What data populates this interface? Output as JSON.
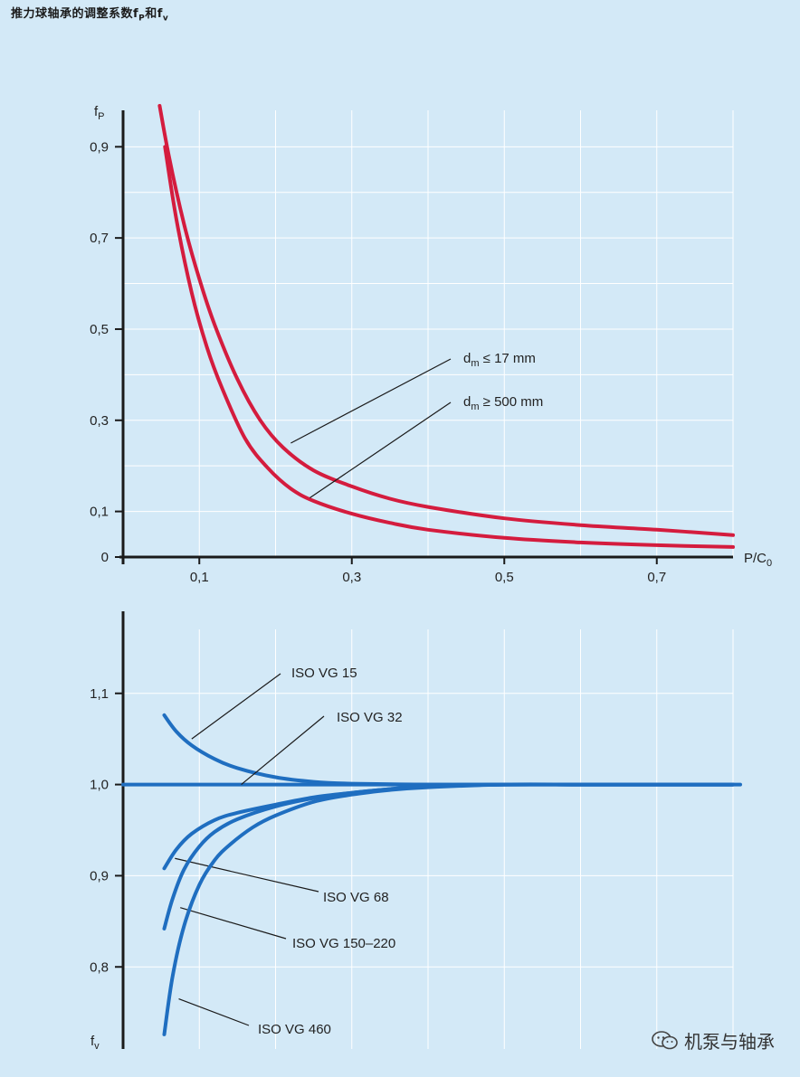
{
  "title": {
    "text": "推力球轴承的调整系数f",
    "sub1": "P",
    "mid": "和f",
    "sub2": "v"
  },
  "watermark": "机泵与轴承",
  "colors": {
    "background": "#d3e9f7",
    "grid": "#ffffff",
    "red": "#d41c3e",
    "blue": "#1f6ec0",
    "axis": "#1a1a1a"
  },
  "chart_data": [
    {
      "type": "line",
      "name": "fP chart",
      "ylabel_main": "f",
      "ylabel_sub": "P",
      "xlabel_main": "P/C",
      "xlabel_sub": "0",
      "xlim": [
        0,
        0.8
      ],
      "ylim": [
        0,
        0.98
      ],
      "xticks": [
        0.1,
        0.3,
        0.5,
        0.7
      ],
      "xtick_labels": [
        "0,1",
        "0,3",
        "0,5",
        "0,7"
      ],
      "yticks": [
        0,
        0.1,
        0.3,
        0.5,
        0.7,
        0.9
      ],
      "ytick_labels": [
        "0",
        "0,1",
        "0,3",
        "0,5",
        "0,7",
        "0,9"
      ],
      "grid_x": [
        0.1,
        0.2,
        0.3,
        0.4,
        0.5,
        0.6,
        0.7,
        0.8
      ],
      "grid_y": [
        0.1,
        0.2,
        0.3,
        0.4,
        0.5,
        0.6,
        0.7,
        0.8,
        0.9
      ],
      "series": [
        {
          "name": "dm ≤ 17 mm",
          "label_main": "d",
          "label_sub": "m",
          "label_rest": " ≤ 17 mm",
          "color": "#d41c3e",
          "x": [
            0.048,
            0.06,
            0.08,
            0.1,
            0.12,
            0.15,
            0.18,
            0.21,
            0.25,
            0.3,
            0.35,
            0.4,
            0.5,
            0.6,
            0.7,
            0.8
          ],
          "y": [
            0.99,
            0.88,
            0.73,
            0.61,
            0.51,
            0.39,
            0.3,
            0.24,
            0.19,
            0.155,
            0.128,
            0.11,
            0.085,
            0.07,
            0.06,
            0.048
          ],
          "leader_to": [
            0.22,
            0.25
          ]
        },
        {
          "name": "dm ≥ 500 mm",
          "label_main": "d",
          "label_sub": "m",
          "label_rest": " ≥ 500 mm",
          "color": "#d41c3e",
          "x": [
            0.055,
            0.07,
            0.09,
            0.11,
            0.13,
            0.16,
            0.19,
            0.22,
            0.25,
            0.3,
            0.35,
            0.4,
            0.5,
            0.6,
            0.7,
            0.8
          ],
          "y": [
            0.9,
            0.74,
            0.58,
            0.46,
            0.37,
            0.26,
            0.195,
            0.15,
            0.123,
            0.095,
            0.075,
            0.06,
            0.042,
            0.032,
            0.026,
            0.022
          ],
          "leader_to": [
            0.245,
            0.13
          ]
        }
      ]
    },
    {
      "type": "line",
      "name": "fv chart",
      "ylabel_main": "f",
      "ylabel_sub": "v",
      "xlim": [
        0,
        0.8
      ],
      "ylim": [
        0.71,
        1.19
      ],
      "yticks": [
        0.8,
        0.9,
        1.0,
        1.1
      ],
      "ytick_labels": [
        "0,8",
        "0,9",
        "1,0",
        "1,1"
      ],
      "grid_x": [
        0.1,
        0.2,
        0.3,
        0.4,
        0.5,
        0.6,
        0.7,
        0.8
      ],
      "grid_y": [
        0.8,
        0.9,
        1.0,
        1.1
      ],
      "series": [
        {
          "name": "ISO VG 15",
          "color": "#1f6ec0",
          "x": [
            0.054,
            0.07,
            0.09,
            0.12,
            0.15,
            0.2,
            0.25,
            0.3,
            0.4,
            0.5,
            0.6,
            0.7,
            0.8
          ],
          "y": [
            1.076,
            1.058,
            1.043,
            1.028,
            1.018,
            1.008,
            1.003,
            1.001,
            1.0,
            1.0,
            1.0,
            1.0,
            1.0
          ],
          "leader_to": [
            0.09,
            1.05
          ]
        },
        {
          "name": "ISO VG 32",
          "color": "#1f6ec0",
          "x": [
            0.0,
            0.1,
            0.2,
            0.3,
            0.4,
            0.5,
            0.6,
            0.7,
            0.8
          ],
          "y": [
            1.0,
            1.0,
            1.0,
            1.0,
            1.0,
            1.0,
            1.0,
            1.0,
            1.0
          ],
          "leader_to": [
            0.155,
            1.0
          ]
        },
        {
          "name": "ISO VG 68",
          "color": "#1f6ec0",
          "x": [
            0.054,
            0.07,
            0.09,
            0.12,
            0.15,
            0.2,
            0.25,
            0.3,
            0.35,
            0.4,
            0.5,
            0.6,
            0.7,
            0.8
          ],
          "y": [
            0.908,
            0.929,
            0.946,
            0.961,
            0.969,
            0.978,
            0.986,
            0.991,
            0.995,
            0.998,
            1.0,
            1.0,
            1.0,
            1.0
          ],
          "leader_to": [
            0.068,
            0.919
          ]
        },
        {
          "name": "ISO VG 150–220",
          "color": "#1f6ec0",
          "x": [
            0.054,
            0.065,
            0.08,
            0.1,
            0.12,
            0.15,
            0.2,
            0.25,
            0.3,
            0.35,
            0.4,
            0.5,
            0.6,
            0.7,
            0.8
          ],
          "y": [
            0.842,
            0.875,
            0.907,
            0.932,
            0.948,
            0.962,
            0.976,
            0.985,
            0.991,
            0.995,
            0.998,
            1.0,
            1.0,
            1.0,
            1.0
          ],
          "leader_to": [
            0.075,
            0.865
          ]
        },
        {
          "name": "ISO VG 460",
          "color": "#1f6ec0",
          "x": [
            0.054,
            0.065,
            0.08,
            0.1,
            0.12,
            0.14,
            0.17,
            0.2,
            0.25,
            0.3,
            0.35,
            0.4,
            0.5,
            0.6,
            0.7,
            0.8
          ],
          "y": [
            0.726,
            0.79,
            0.845,
            0.89,
            0.917,
            0.934,
            0.953,
            0.966,
            0.981,
            0.989,
            0.994,
            0.997,
            1.0,
            1.0,
            1.0,
            1.0
          ],
          "leader_to": [
            0.073,
            0.765
          ]
        }
      ]
    }
  ]
}
